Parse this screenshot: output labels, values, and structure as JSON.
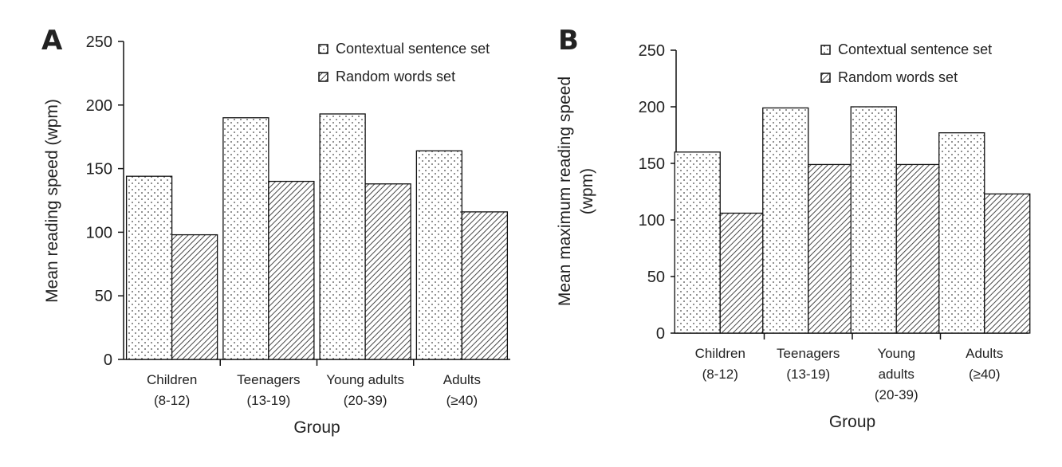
{
  "chart_data": [
    {
      "panel": "A",
      "type": "bar",
      "categories": [
        [
          "Children",
          "(8-12)"
        ],
        [
          "Teenagers",
          "(13-19)"
        ],
        [
          "Young adults",
          "(20-39)"
        ],
        [
          "Adults",
          "(≥40)"
        ]
      ],
      "series": [
        {
          "name": "Contextual sentence set",
          "values": [
            144,
            190,
            193,
            164
          ]
        },
        {
          "name": "Random words set",
          "values": [
            98,
            140,
            138,
            116
          ]
        }
      ],
      "yticks": [
        0,
        50,
        100,
        150,
        200,
        250
      ],
      "ylim": [
        0,
        250
      ],
      "xlabel": "Group",
      "ylabel": "Mean reading speed (wpm)",
      "legend_position": "top-right"
    },
    {
      "panel": "B",
      "type": "bar",
      "categories": [
        [
          "Children",
          "(8-12)"
        ],
        [
          "Teenagers",
          "(13-19)"
        ],
        [
          "Young",
          "adults",
          "(20-39)"
        ],
        [
          "Adults",
          "(≥40)"
        ]
      ],
      "series": [
        {
          "name": "Contextual sentence set",
          "values": [
            160,
            199,
            200,
            177
          ]
        },
        {
          "name": "Random words set",
          "values": [
            106,
            149,
            149,
            123
          ]
        }
      ],
      "yticks": [
        0,
        50,
        100,
        150,
        200,
        250
      ],
      "ylim": [
        0,
        250
      ],
      "xlabel": "Group",
      "ylabel": [
        "Mean maximum reading speed",
        "(wpm)"
      ],
      "legend_position": "top-right"
    }
  ]
}
